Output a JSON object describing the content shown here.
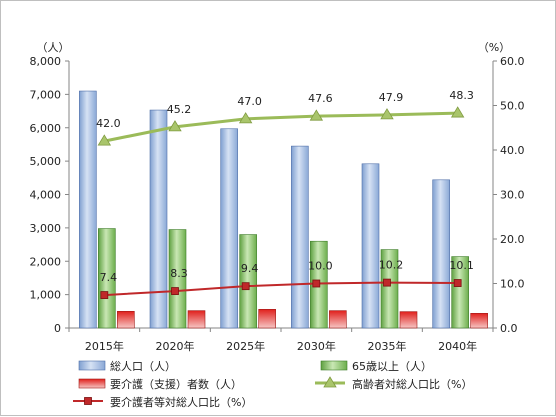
{
  "chart_data": {
    "type": "bar",
    "categories": [
      "2015年",
      "2020年",
      "2025年",
      "2030年",
      "2035年",
      "2040年"
    ],
    "y_left": {
      "unit": "（人）",
      "min": 0,
      "max": 8000,
      "step": 1000,
      "tick_labels": [
        "0",
        "1,000",
        "2,000",
        "3,000",
        "4,000",
        "5,000",
        "6,000",
        "7,000",
        "8,000"
      ]
    },
    "y_right": {
      "unit": "（%）",
      "min": 0,
      "max": 60,
      "step": 10,
      "tick_labels": [
        "0.0",
        "10.0",
        "20.0",
        "30.0",
        "40.0",
        "50.0",
        "60.0"
      ]
    },
    "bar_series": [
      {
        "name": "総人口（人）",
        "axis": "left",
        "values": [
          7100,
          6530,
          5970,
          5450,
          4920,
          4440
        ],
        "color": "#a8c4e8"
      },
      {
        "name": "65歳以上（人）",
        "axis": "left",
        "values": [
          2980,
          2950,
          2800,
          2600,
          2350,
          2140
        ],
        "color": "#8cc46a"
      },
      {
        "name": "要介護（支援）者数（人）",
        "axis": "left",
        "values": [
          500,
          520,
          560,
          520,
          490,
          440
        ],
        "color": "#e8302c"
      }
    ],
    "line_series": [
      {
        "name": "高齢者対総人口比（%）",
        "axis": "right",
        "values": [
          42.0,
          45.2,
          47.0,
          47.6,
          47.9,
          48.3
        ],
        "labels": [
          "42.0",
          "45.2",
          "47.0",
          "47.6",
          "47.9",
          "48.3"
        ],
        "color": "#9bbb59",
        "marker": "triangle"
      },
      {
        "name": "要介護者等対総人口比（%）",
        "axis": "right",
        "values": [
          7.4,
          8.3,
          9.4,
          10.0,
          10.2,
          10.1
        ],
        "labels": [
          "7.4",
          "8.3",
          "9.4",
          "10.0",
          "10.2",
          "10.1"
        ],
        "color": "#c0282a",
        "marker": "square"
      }
    ],
    "grid": false,
    "legend_position": "bottom"
  }
}
